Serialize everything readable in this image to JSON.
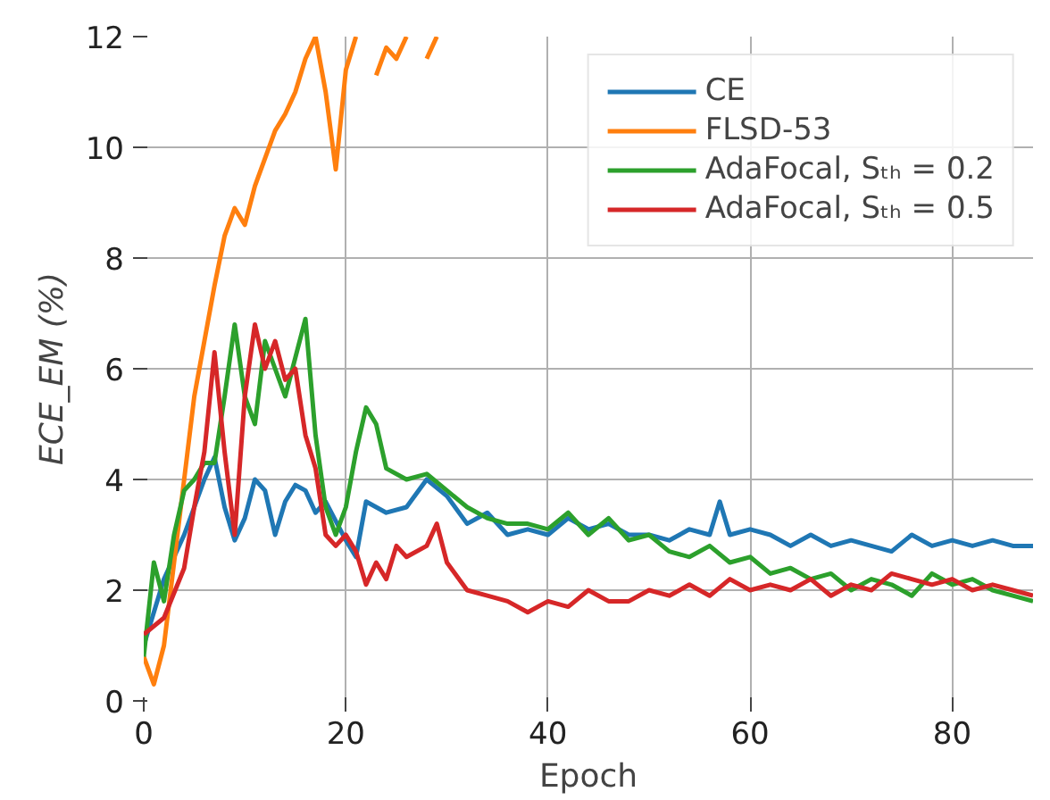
{
  "chart_data": {
    "type": "line",
    "xlabel": "Epoch",
    "ylabel": "ECE_EM (%)",
    "xlim": [
      0,
      88
    ],
    "ylim": [
      0,
      12
    ],
    "xticks": [
      0,
      20,
      40,
      60,
      80
    ],
    "yticks": [
      0,
      2,
      4,
      6,
      8,
      10,
      12
    ],
    "grid": true,
    "legend": "top right",
    "line_style": "solid",
    "marker": "none",
    "series": [
      {
        "name": "CE",
        "color": "#1f77b4",
        "x": [
          0,
          2,
          4,
          6,
          7,
          8,
          9,
          10,
          11,
          12,
          13,
          14,
          15,
          16,
          17,
          18,
          20,
          21,
          22,
          24,
          26,
          28,
          30,
          32,
          34,
          36,
          38,
          40,
          42,
          44,
          46,
          48,
          50,
          52,
          54,
          56,
          57,
          58,
          60,
          62,
          64,
          66,
          68,
          70,
          72,
          74,
          76,
          78,
          80,
          82,
          84,
          86,
          88
        ],
        "values": [
          1.0,
          2.2,
          3.0,
          4.0,
          4.4,
          3.5,
          2.9,
          3.3,
          4.0,
          3.8,
          3.0,
          3.6,
          3.9,
          3.8,
          3.4,
          3.6,
          2.9,
          2.6,
          3.6,
          3.4,
          3.5,
          4.0,
          3.7,
          3.2,
          3.4,
          3.0,
          3.1,
          3.0,
          3.3,
          3.1,
          3.2,
          3.0,
          3.0,
          2.9,
          3.1,
          3.0,
          3.6,
          3.0,
          3.1,
          3.0,
          2.8,
          3.0,
          2.8,
          2.9,
          2.8,
          2.7,
          3.0,
          2.8,
          2.9,
          2.8,
          2.9,
          2.8,
          2.8
        ]
      },
      {
        "name": "FLSD-53",
        "color": "#ff7f0e",
        "x": [
          0,
          1,
          2,
          3,
          4,
          5,
          6,
          7,
          8,
          9,
          10,
          11,
          12,
          13,
          14,
          15,
          16,
          17,
          18,
          19,
          20,
          21,
          22,
          23,
          24,
          25,
          26,
          27,
          28,
          29
        ],
        "values": [
          0.8,
          0.3,
          1.0,
          2.5,
          4.0,
          5.5,
          6.5,
          7.5,
          8.4,
          8.9,
          8.6,
          9.3,
          9.8,
          10.3,
          10.6,
          11.0,
          11.6,
          12.0,
          11.0,
          9.6,
          11.4,
          12.0,
          null,
          11.3,
          11.8,
          11.6,
          12.0,
          null,
          11.6,
          12.0
        ]
      },
      {
        "name": "AdaFocal, Sₜₕ = 0.2",
        "color": "#2ca02c",
        "x": [
          0,
          1,
          2,
          3,
          4,
          5,
          6,
          7,
          8,
          9,
          10,
          11,
          12,
          13,
          14,
          15,
          16,
          17,
          18,
          19,
          20,
          21,
          22,
          23,
          24,
          26,
          28,
          30,
          32,
          34,
          36,
          38,
          40,
          42,
          44,
          46,
          48,
          50,
          52,
          54,
          56,
          58,
          60,
          62,
          64,
          66,
          68,
          70,
          72,
          74,
          76,
          78,
          80,
          82,
          84,
          86,
          88
        ],
        "values": [
          0.8,
          2.5,
          1.8,
          3.0,
          3.8,
          4.0,
          4.3,
          4.3,
          5.5,
          6.8,
          5.5,
          5.0,
          6.5,
          6.0,
          5.5,
          6.2,
          6.9,
          4.8,
          3.5,
          3.0,
          3.5,
          4.5,
          5.3,
          5.0,
          4.2,
          4.0,
          4.1,
          3.8,
          3.5,
          3.3,
          3.2,
          3.2,
          3.1,
          3.4,
          3.0,
          3.3,
          2.9,
          3.0,
          2.7,
          2.6,
          2.8,
          2.5,
          2.6,
          2.3,
          2.4,
          2.2,
          2.3,
          2.0,
          2.2,
          2.1,
          1.9,
          2.3,
          2.1,
          2.2,
          2.0,
          1.9,
          1.8
        ]
      },
      {
        "name": "AdaFocal, Sₜₕ = 0.5",
        "color": "#d62728",
        "x": [
          0,
          2,
          4,
          5,
          6,
          7,
          8,
          9,
          10,
          11,
          12,
          13,
          14,
          15,
          16,
          17,
          18,
          19,
          20,
          21,
          22,
          23,
          24,
          25,
          26,
          28,
          29,
          30,
          32,
          34,
          36,
          38,
          40,
          42,
          44,
          46,
          48,
          50,
          52,
          54,
          56,
          58,
          60,
          62,
          64,
          66,
          68,
          70,
          72,
          74,
          76,
          78,
          80,
          82,
          84,
          86,
          88
        ],
        "values": [
          1.2,
          1.5,
          2.4,
          3.5,
          4.5,
          6.3,
          4.5,
          3.0,
          5.5,
          6.8,
          6.0,
          6.5,
          5.8,
          6.0,
          4.8,
          4.2,
          3.0,
          2.8,
          3.0,
          2.7,
          2.1,
          2.5,
          2.2,
          2.8,
          2.6,
          2.8,
          3.2,
          2.5,
          2.0,
          1.9,
          1.8,
          1.6,
          1.8,
          1.7,
          2.0,
          1.8,
          1.8,
          2.0,
          1.9,
          2.1,
          1.9,
          2.2,
          2.0,
          2.1,
          2.0,
          2.2,
          1.9,
          2.1,
          2.0,
          2.3,
          2.2,
          2.1,
          2.2,
          2.0,
          2.1,
          2.0,
          1.9
        ]
      }
    ]
  }
}
